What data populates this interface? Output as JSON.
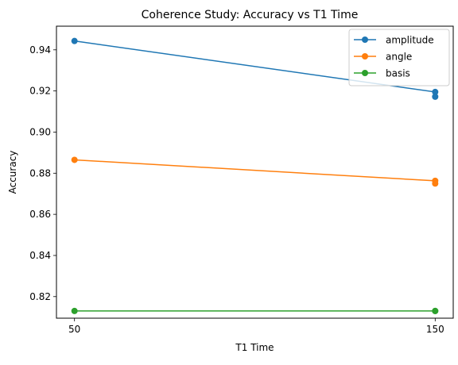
{
  "chart_data": {
    "type": "line",
    "title": "Coherence Study: Accuracy vs T1 Time",
    "xlabel": "T1 Time",
    "ylabel": "Accuracy",
    "xlim": [
      45,
      155
    ],
    "ylim": [
      0.8095,
      0.9515
    ],
    "xticks": [
      50,
      150
    ],
    "xtick_labels": [
      "50",
      "150"
    ],
    "yticks": [
      0.82,
      0.84,
      0.86,
      0.88,
      0.9,
      0.92,
      0.94
    ],
    "ytick_labels": [
      "0.82",
      "0.84",
      "0.86",
      "0.88",
      "0.90",
      "0.92",
      "0.94"
    ],
    "grid": false,
    "legend_position": "top-right",
    "series": [
      {
        "name": "amplitude",
        "color": "#1f77b4",
        "x": [
          50,
          150,
          150
        ],
        "y": [
          0.9443,
          0.9195,
          0.9172
        ]
      },
      {
        "name": "angle",
        "color": "#ff7f0e",
        "x": [
          50,
          150,
          150
        ],
        "y": [
          0.8865,
          0.8763,
          0.875
        ]
      },
      {
        "name": "basis",
        "color": "#2ca02c",
        "x": [
          50,
          150,
          150
        ],
        "y": [
          0.813,
          0.813,
          0.813
        ]
      }
    ]
  }
}
